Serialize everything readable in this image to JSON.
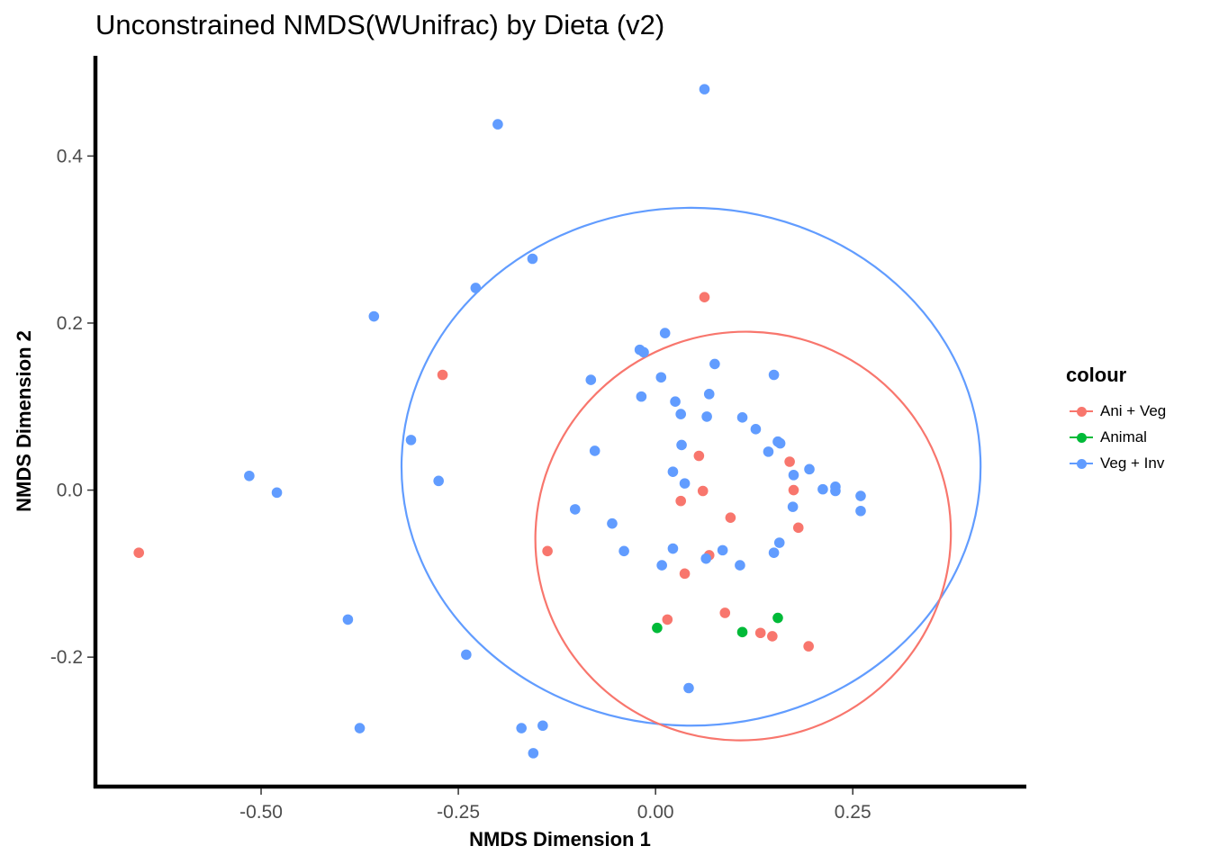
{
  "chart_data": {
    "type": "scatter",
    "title": "Unconstrained NMDS(WUnifrac) by Dieta (v2)",
    "xlabel": "NMDS Dimension 1",
    "ylabel": "NMDS Dimension 2",
    "xlim": [
      -0.71,
      0.47
    ],
    "ylim": [
      -0.355,
      0.52
    ],
    "xticks": [
      -0.5,
      -0.25,
      0.0,
      0.25
    ],
    "xtick_labels": [
      "-0.50",
      "-0.25",
      "0.00",
      "0.25"
    ],
    "yticks": [
      -0.2,
      0.0,
      0.2,
      0.4
    ],
    "ytick_labels": [
      "-0.2",
      "0.0",
      "0.2",
      "0.4"
    ],
    "grid": false,
    "legend": {
      "title": "colour",
      "position": "right"
    },
    "series": [
      {
        "name": "Ani + Veg",
        "color": "#F8766D",
        "points": [
          [
            -0.655,
            -0.075
          ],
          [
            -0.27,
            0.138
          ],
          [
            -0.137,
            -0.073
          ],
          [
            0.062,
            0.231
          ],
          [
            0.055,
            0.041
          ],
          [
            0.06,
            -0.001
          ],
          [
            0.032,
            -0.013
          ],
          [
            0.095,
            -0.033
          ],
          [
            0.068,
            -0.078
          ],
          [
            0.037,
            -0.1
          ],
          [
            0.015,
            -0.155
          ],
          [
            0.088,
            -0.147
          ],
          [
            0.133,
            -0.171
          ],
          [
            0.148,
            -0.175
          ],
          [
            0.194,
            -0.187
          ],
          [
            0.17,
            0.034
          ],
          [
            0.175,
            0.0
          ],
          [
            0.181,
            -0.045
          ]
        ]
      },
      {
        "name": "Animal",
        "color": "#00BA38",
        "points": [
          [
            0.002,
            -0.165
          ],
          [
            0.11,
            -0.17
          ],
          [
            0.155,
            -0.153
          ]
        ]
      },
      {
        "name": "Veg + Inv",
        "color": "#619CFF",
        "points": [
          [
            0.062,
            0.48
          ],
          [
            -0.2,
            0.438
          ],
          [
            -0.156,
            0.277
          ],
          [
            -0.228,
            0.242
          ],
          [
            -0.357,
            0.208
          ],
          [
            0.012,
            0.188
          ],
          [
            -0.02,
            0.168
          ],
          [
            -0.015,
            0.165
          ],
          [
            0.075,
            0.151
          ],
          [
            0.15,
            0.138
          ],
          [
            0.007,
            0.135
          ],
          [
            -0.082,
            0.132
          ],
          [
            0.068,
            0.115
          ],
          [
            -0.018,
            0.112
          ],
          [
            0.025,
            0.106
          ],
          [
            0.032,
            0.091
          ],
          [
            0.065,
            0.088
          ],
          [
            0.11,
            0.087
          ],
          [
            0.127,
            0.073
          ],
          [
            -0.31,
            0.06
          ],
          [
            0.155,
            0.058
          ],
          [
            0.158,
            0.056
          ],
          [
            0.033,
            0.054
          ],
          [
            -0.077,
            0.047
          ],
          [
            0.143,
            0.046
          ],
          [
            0.195,
            0.025
          ],
          [
            0.022,
            0.022
          ],
          [
            0.175,
            0.018
          ],
          [
            0.037,
            0.008
          ],
          [
            -0.275,
            0.011
          ],
          [
            -0.515,
            0.017
          ],
          [
            0.228,
            0.004
          ],
          [
            0.228,
            -0.001
          ],
          [
            0.212,
            0.001
          ],
          [
            -0.48,
            -0.003
          ],
          [
            0.26,
            -0.007
          ],
          [
            -0.102,
            -0.023
          ],
          [
            0.174,
            -0.02
          ],
          [
            0.26,
            -0.025
          ],
          [
            -0.055,
            -0.04
          ],
          [
            0.157,
            -0.063
          ],
          [
            0.022,
            -0.07
          ],
          [
            -0.04,
            -0.073
          ],
          [
            0.085,
            -0.072
          ],
          [
            0.15,
            -0.075
          ],
          [
            0.064,
            -0.082
          ],
          [
            0.008,
            -0.09
          ],
          [
            0.107,
            -0.09
          ],
          [
            -0.39,
            -0.155
          ],
          [
            -0.24,
            -0.197
          ],
          [
            0.042,
            -0.237
          ],
          [
            -0.375,
            -0.285
          ],
          [
            -0.17,
            -0.285
          ],
          [
            -0.143,
            -0.282
          ],
          [
            -0.155,
            -0.315
          ]
        ]
      }
    ],
    "ellipses": [
      {
        "series": "Veg + Inv",
        "cx": 0.045,
        "cy": 0.028,
        "rx": 0.367,
        "ry": 0.31
      },
      {
        "series": "Ani + Veg",
        "cx": 0.111,
        "cy": -0.055,
        "rx": 0.264,
        "ry": 0.244,
        "rotation_deg": -20
      }
    ]
  }
}
